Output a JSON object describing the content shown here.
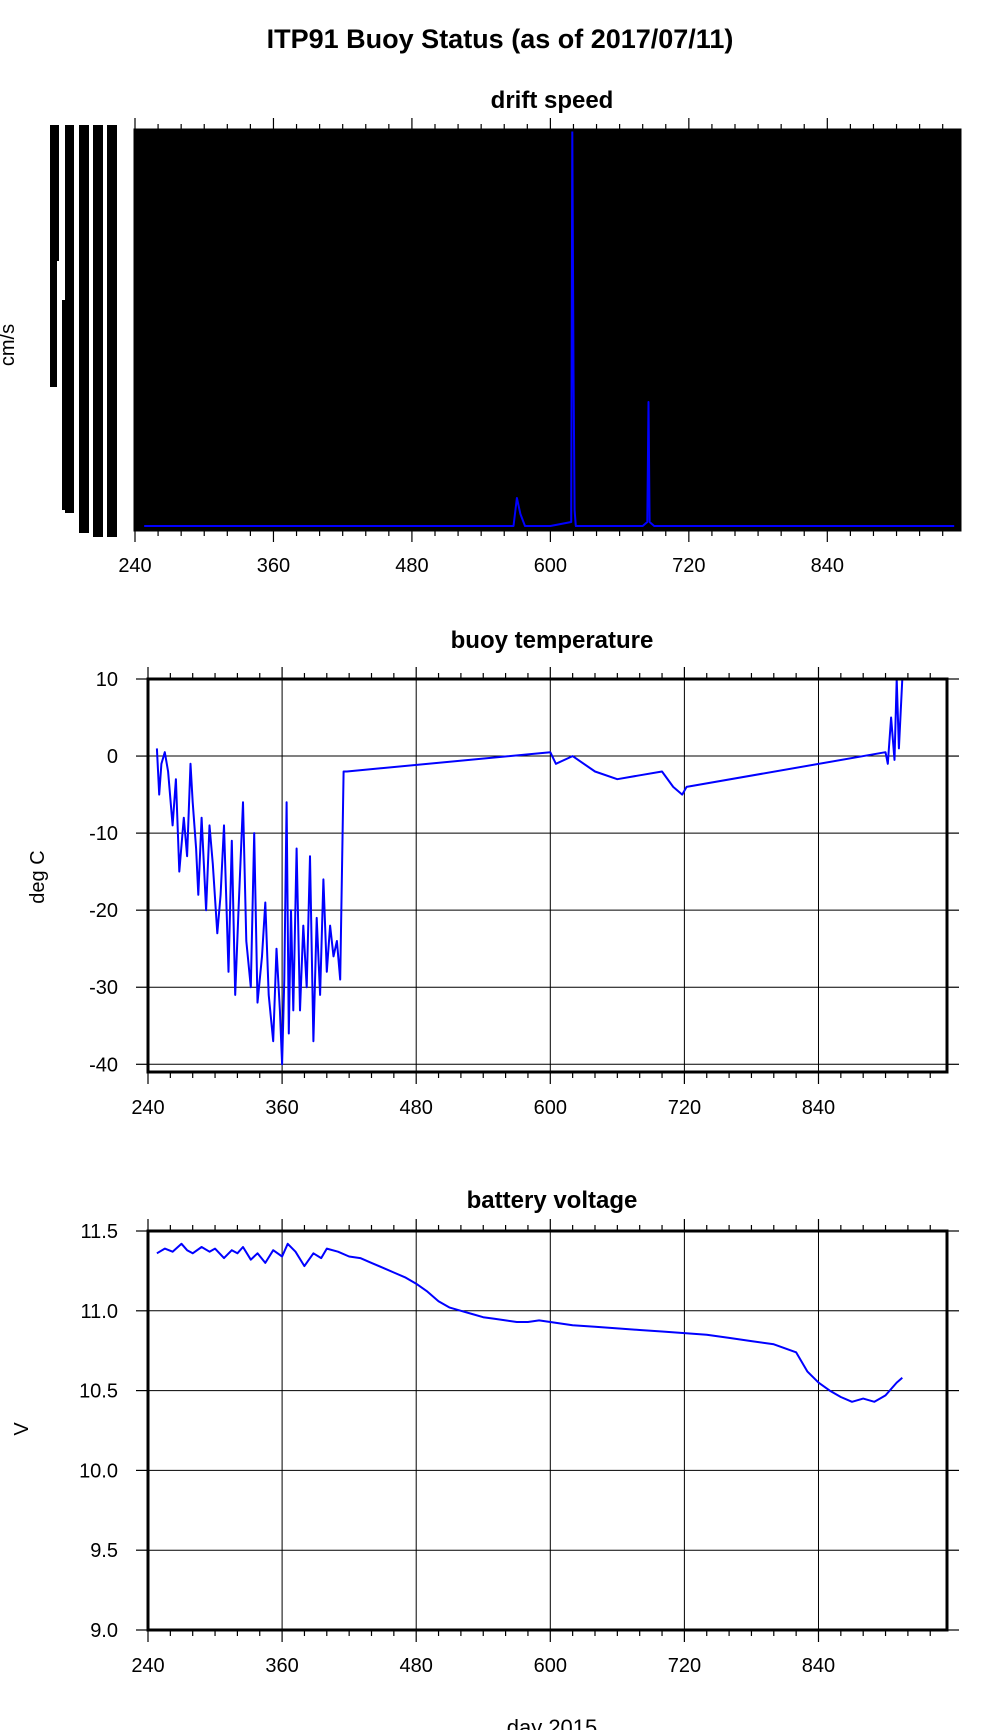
{
  "figure_title": "ITP91 Buoy Status (as of 2017/07/11)",
  "xlabel": "day 2015",
  "colors": {
    "series": "#0000ff",
    "axis": "#000000",
    "grid": "#000000",
    "blackout": "#000000"
  },
  "chart_data": [
    {
      "type": "line",
      "title": "drift speed",
      "ylabel": "cm/s",
      "xlim": [
        240,
        955
      ],
      "xticks": [
        240,
        360,
        480,
        600,
        720,
        840
      ],
      "background": "black (plot area filled)",
      "x": [
        248,
        300,
        400,
        500,
        568,
        571,
        574,
        578,
        600,
        618,
        619,
        620,
        621,
        622,
        624,
        640,
        660,
        680,
        684,
        685,
        686,
        690,
        720,
        800,
        950
      ],
      "y": [
        0.01,
        0.01,
        0.01,
        0.01,
        0.01,
        0.08,
        0.04,
        0.01,
        0.01,
        0.02,
        1.0,
        0.4,
        0.05,
        0.01,
        0.01,
        0.01,
        0.01,
        0.01,
        0.02,
        0.32,
        0.02,
        0.01,
        0.01,
        0.01,
        0.01
      ]
    },
    {
      "type": "line",
      "title": "buoy temperature",
      "ylabel": "deg C",
      "xlim": [
        240,
        955
      ],
      "ylim": [
        -41,
        10
      ],
      "xticks": [
        240,
        360,
        480,
        600,
        720,
        840
      ],
      "yticks": [
        10,
        0,
        -10,
        -20,
        -30,
        -40
      ],
      "grid": true,
      "x": [
        248,
        250,
        252,
        255,
        258,
        262,
        265,
        268,
        272,
        275,
        278,
        280,
        283,
        285,
        288,
        292,
        295,
        298,
        302,
        305,
        308,
        312,
        315,
        318,
        321,
        325,
        328,
        332,
        335,
        338,
        342,
        345,
        348,
        352,
        355,
        358,
        360,
        362,
        364,
        366,
        368,
        370,
        373,
        376,
        379,
        382,
        385,
        388,
        391,
        394,
        397,
        400,
        403,
        406,
        409,
        412,
        415,
        418,
        600,
        605,
        620,
        640,
        660,
        680,
        700,
        710,
        718,
        722,
        900,
        902,
        905,
        908,
        910,
        912,
        915
      ],
      "y": [
        1,
        -5,
        -1,
        0.5,
        -2,
        -9,
        -3,
        -15,
        -8,
        -13,
        -1,
        -6,
        -12,
        -18,
        -8,
        -20,
        -9,
        -14,
        -23,
        -18,
        -9,
        -28,
        -11,
        -31,
        -20,
        -6,
        -24,
        -30,
        -10,
        -32,
        -26,
        -19,
        -31,
        -37,
        -25,
        -33,
        -40,
        -29,
        -6,
        -36,
        -20,
        -33,
        -12,
        -33,
        -22,
        -30,
        -13,
        -37,
        -21,
        -31,
        -16,
        -28,
        -22,
        -26,
        -24,
        -29,
        -2,
        -2,
        0.5,
        -1,
        0,
        -2,
        -3,
        -2.5,
        -2,
        -4,
        -5,
        -4,
        0.5,
        -1,
        5,
        -0.5,
        10,
        1,
        10
      ]
    },
    {
      "type": "line",
      "title": "battery voltage",
      "ylabel": "V",
      "xlim": [
        240,
        955
      ],
      "ylim": [
        9.0,
        11.5
      ],
      "xticks": [
        240,
        360,
        480,
        600,
        720,
        840
      ],
      "yticks": [
        11.5,
        11.0,
        10.5,
        10.0,
        9.5,
        9.0
      ],
      "grid": true,
      "x": [
        248,
        255,
        262,
        270,
        275,
        280,
        288,
        295,
        300,
        308,
        315,
        320,
        325,
        332,
        338,
        345,
        352,
        360,
        365,
        372,
        380,
        388,
        395,
        400,
        410,
        420,
        430,
        440,
        450,
        460,
        470,
        480,
        490,
        500,
        510,
        520,
        530,
        540,
        550,
        560,
        570,
        580,
        590,
        600,
        620,
        640,
        660,
        680,
        700,
        720,
        740,
        760,
        780,
        800,
        820,
        830,
        840,
        850,
        860,
        870,
        880,
        890,
        900,
        910,
        915
      ],
      "y": [
        11.36,
        11.39,
        11.37,
        11.42,
        11.38,
        11.36,
        11.4,
        11.37,
        11.39,
        11.33,
        11.38,
        11.36,
        11.4,
        11.32,
        11.36,
        11.3,
        11.38,
        11.34,
        11.42,
        11.37,
        11.28,
        11.36,
        11.33,
        11.39,
        11.37,
        11.34,
        11.33,
        11.3,
        11.27,
        11.24,
        11.21,
        11.17,
        11.12,
        11.06,
        11.02,
        11.0,
        10.98,
        10.96,
        10.95,
        10.94,
        10.93,
        10.93,
        10.94,
        10.93,
        10.91,
        10.9,
        10.89,
        10.88,
        10.87,
        10.86,
        10.85,
        10.83,
        10.81,
        10.79,
        10.74,
        10.62,
        10.55,
        10.5,
        10.46,
        10.43,
        10.45,
        10.43,
        10.47,
        10.55,
        10.58
      ]
    }
  ]
}
